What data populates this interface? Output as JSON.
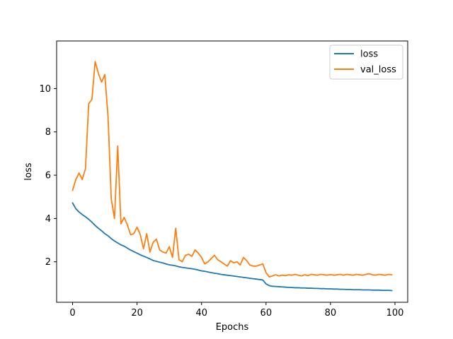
{
  "chart_data": {
    "type": "line",
    "title": "",
    "xlabel": "Epochs",
    "ylabel": "loss",
    "xlim": [
      -4.95,
      103.95
    ],
    "ylim": [
      0.13,
      12.2
    ],
    "xticks": [
      0,
      20,
      40,
      60,
      80,
      100
    ],
    "yticks": [
      2,
      4,
      6,
      8,
      10
    ],
    "grid": false,
    "legend_position": "top-right",
    "colors": {
      "loss": "#1f77b4",
      "val_loss": "#ff7f0e"
    },
    "series": [
      {
        "name": "loss",
        "x": [
          0,
          1,
          2,
          3,
          4,
          5,
          6,
          7,
          8,
          9,
          10,
          11,
          12,
          13,
          14,
          15,
          16,
          17,
          18,
          19,
          20,
          21,
          22,
          23,
          24,
          25,
          26,
          27,
          28,
          29,
          30,
          31,
          32,
          33,
          34,
          35,
          36,
          37,
          38,
          39,
          40,
          41,
          42,
          43,
          44,
          45,
          46,
          47,
          48,
          49,
          50,
          51,
          52,
          53,
          54,
          55,
          56,
          57,
          58,
          59,
          60,
          61,
          62,
          63,
          64,
          65,
          66,
          67,
          68,
          69,
          70,
          71,
          72,
          73,
          74,
          75,
          76,
          77,
          78,
          79,
          80,
          81,
          82,
          83,
          84,
          85,
          86,
          87,
          88,
          89,
          90,
          91,
          92,
          93,
          94,
          95,
          96,
          97,
          98,
          99
        ],
        "values": [
          4.72,
          4.45,
          4.3,
          4.18,
          4.08,
          3.96,
          3.83,
          3.68,
          3.55,
          3.43,
          3.3,
          3.2,
          3.07,
          2.96,
          2.87,
          2.78,
          2.72,
          2.63,
          2.54,
          2.47,
          2.4,
          2.32,
          2.26,
          2.2,
          2.13,
          2.06,
          2.02,
          1.98,
          1.95,
          1.9,
          1.86,
          1.84,
          1.81,
          1.77,
          1.74,
          1.72,
          1.7,
          1.68,
          1.65,
          1.62,
          1.58,
          1.56,
          1.53,
          1.5,
          1.47,
          1.45,
          1.42,
          1.4,
          1.38,
          1.36,
          1.34,
          1.32,
          1.3,
          1.28,
          1.26,
          1.24,
          1.22,
          1.2,
          1.18,
          1.16,
          0.98,
          0.9,
          0.87,
          0.86,
          0.85,
          0.84,
          0.83,
          0.82,
          0.81,
          0.8,
          0.8,
          0.79,
          0.79,
          0.78,
          0.78,
          0.77,
          0.77,
          0.76,
          0.76,
          0.75,
          0.75,
          0.74,
          0.74,
          0.73,
          0.73,
          0.72,
          0.72,
          0.71,
          0.71,
          0.71,
          0.7,
          0.7,
          0.7,
          0.69,
          0.69,
          0.69,
          0.68,
          0.68,
          0.68,
          0.67
        ]
      },
      {
        "name": "val_loss",
        "x": [
          0,
          1,
          2,
          3,
          4,
          5,
          6,
          7,
          8,
          9,
          10,
          11,
          12,
          13,
          14,
          15,
          16,
          17,
          18,
          19,
          20,
          21,
          22,
          23,
          24,
          25,
          26,
          27,
          28,
          29,
          30,
          31,
          32,
          33,
          34,
          35,
          36,
          37,
          38,
          39,
          40,
          41,
          42,
          43,
          44,
          45,
          46,
          47,
          48,
          49,
          50,
          51,
          52,
          53,
          54,
          55,
          56,
          57,
          58,
          59,
          60,
          61,
          62,
          63,
          64,
          65,
          66,
          67,
          68,
          69,
          70,
          71,
          72,
          73,
          74,
          75,
          76,
          77,
          78,
          79,
          80,
          81,
          82,
          83,
          84,
          85,
          86,
          87,
          88,
          89,
          90,
          91,
          92,
          93,
          94,
          95,
          96,
          97,
          98,
          99
        ],
        "values": [
          5.3,
          5.8,
          6.1,
          5.8,
          6.3,
          9.3,
          9.5,
          11.25,
          10.7,
          10.3,
          10.65,
          8.7,
          4.9,
          4.0,
          7.35,
          3.75,
          4.05,
          3.7,
          3.25,
          3.3,
          3.6,
          3.25,
          2.6,
          3.3,
          2.45,
          2.9,
          3.05,
          2.55,
          2.45,
          2.4,
          2.7,
          2.2,
          3.55,
          2.1,
          2.0,
          2.3,
          2.35,
          2.25,
          2.55,
          2.4,
          2.2,
          1.9,
          2.0,
          2.15,
          2.3,
          2.1,
          2.0,
          1.9,
          1.8,
          2.05,
          1.95,
          2.0,
          1.85,
          2.2,
          2.05,
          1.85,
          1.8,
          1.8,
          1.85,
          1.9,
          1.5,
          1.3,
          1.35,
          1.4,
          1.35,
          1.38,
          1.36,
          1.4,
          1.38,
          1.42,
          1.38,
          1.35,
          1.4,
          1.36,
          1.42,
          1.4,
          1.38,
          1.42,
          1.4,
          1.38,
          1.41,
          1.38,
          1.4,
          1.42,
          1.38,
          1.42,
          1.4,
          1.38,
          1.42,
          1.4,
          1.38,
          1.42,
          1.45,
          1.4,
          1.38,
          1.42,
          1.4,
          1.38,
          1.42,
          1.4
        ]
      }
    ]
  }
}
